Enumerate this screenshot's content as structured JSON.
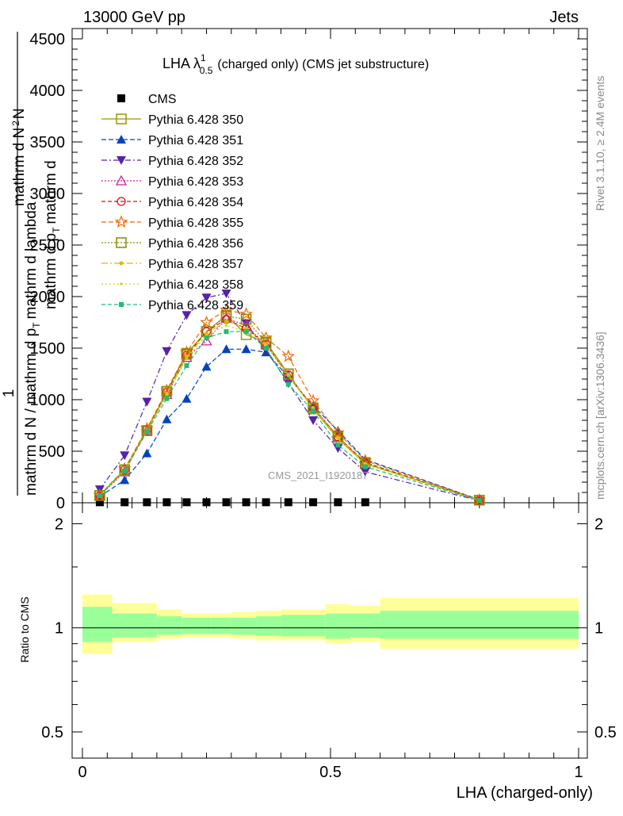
{
  "header": {
    "left": "13000 GeV pp",
    "right": "Jets"
  },
  "side": {
    "rivet": "Rivet 3.1.10, ≥ 2.4M events",
    "mcplots": "mcplots.cern.ch [arXiv:1306.3436]"
  },
  "plot_title": {
    "main": "LHA λ",
    "sup": "1",
    "sub": "0.5",
    "rest": "(charged only) (CMS jet substructure)"
  },
  "watermark": "CMS_2021_I1920187",
  "ylabel_main": {
    "one": "1",
    "den1": "mathrm d N / mathrm d p",
    "den1_sub": "T",
    "den2": "mathrm d N",
    "frac_num1": "mathrm d",
    "frac_num1_sup": "2",
    "frac_num2": "N",
    "frac_den": "mathrm d p",
    "frac_den_sub": "T",
    "frac_den2": "mathrm d lambda"
  },
  "ylabel_ratio": "Ratio to CMS",
  "xlabel": "LHA (charged-only)",
  "colors": {
    "cms": "#000000",
    "band_outer": "#ffff99",
    "band_inner": "#99ff99"
  },
  "chart_data": [
    {
      "type": "line",
      "panel": "main",
      "ylim": [
        0,
        4600
      ],
      "xlim": [
        0,
        1
      ],
      "y_ticks": [
        0,
        500,
        1000,
        1500,
        2000,
        2500,
        3000,
        3500,
        4000,
        4500
      ],
      "y_tick_labels": [
        "0",
        "500",
        "1000",
        "1500",
        "2000",
        "2500",
        "3000",
        "3500",
        "4000",
        "4500"
      ],
      "x": [
        0.035,
        0.085,
        0.13,
        0.17,
        0.21,
        0.25,
        0.29,
        0.33,
        0.37,
        0.415,
        0.465,
        0.515,
        0.57,
        0.8
      ],
      "series": [
        {
          "name": "CMS",
          "color": "#000000",
          "dash": "",
          "marker": "square-filled",
          "x": [
            0.035,
            0.085,
            0.13,
            0.17,
            0.21,
            0.25,
            0.29,
            0.33,
            0.37,
            0.415,
            0.465,
            0.515,
            0.57
          ],
          "values": [
            5,
            5,
            5,
            5,
            5,
            5,
            5,
            5,
            5,
            5,
            5,
            5,
            5
          ]
        },
        {
          "name": "Pythia 6.428 350",
          "color": "#999900",
          "dash": "",
          "marker": "square-open",
          "values": [
            70,
            320,
            700,
            1080,
            1450,
            1660,
            1820,
            1630,
            1560,
            1250,
            910,
            620,
            380,
            25
          ]
        },
        {
          "name": "Pythia 6.428 351",
          "color": "#0044bb",
          "dash": "6,3",
          "marker": "triangle-up-filled",
          "values": [
            60,
            220,
            480,
            810,
            1010,
            1320,
            1490,
            1490,
            1460,
            1220,
            940,
            700,
            420,
            30
          ]
        },
        {
          "name": "Pythia 6.428 352",
          "color": "#5522aa",
          "dash": "7,3,2,3",
          "marker": "triangle-down-filled",
          "values": [
            130,
            460,
            980,
            1470,
            1820,
            1990,
            2030,
            1740,
            1480,
            1160,
            800,
            530,
            300,
            20
          ]
        },
        {
          "name": "Pythia 6.428 353",
          "color": "#cc2299",
          "dash": "2,2",
          "marker": "triangle-up-open",
          "values": [
            65,
            300,
            700,
            1050,
            1410,
            1570,
            1790,
            1720,
            1530,
            1230,
            930,
            640,
            380,
            25
          ]
        },
        {
          "name": "Pythia 6.428 354",
          "color": "#dd1111",
          "dash": "5,3",
          "marker": "circle-open",
          "values": [
            70,
            320,
            710,
            1070,
            1430,
            1660,
            1780,
            1690,
            1540,
            1240,
            920,
            640,
            390,
            25
          ]
        },
        {
          "name": "Pythia 6.428 355",
          "color": "#ee6600",
          "dash": "6,3",
          "marker": "star-open",
          "values": [
            75,
            330,
            720,
            1090,
            1460,
            1750,
            1870,
            1830,
            1600,
            1420,
            990,
            680,
            410,
            28
          ]
        },
        {
          "name": "Pythia 6.428 356",
          "color": "#888800",
          "dash": "2,2",
          "marker": "square-open",
          "values": [
            70,
            320,
            700,
            1080,
            1440,
            1660,
            1810,
            1780,
            1550,
            1250,
            920,
            640,
            390,
            25
          ]
        },
        {
          "name": "Pythia 6.428 357",
          "color": "#ddbb00",
          "dash": "8,3,2,3",
          "marker": "dot",
          "values": [
            70,
            315,
            700,
            1060,
            1420,
            1640,
            1760,
            1690,
            1540,
            1240,
            920,
            630,
            380,
            25
          ]
        },
        {
          "name": "Pythia 6.428 358",
          "color": "#bbdd00",
          "dash": "2,3",
          "marker": "dot-small",
          "values": [
            70,
            310,
            690,
            1050,
            1400,
            1620,
            1720,
            1660,
            1530,
            1230,
            910,
            620,
            370,
            25
          ]
        },
        {
          "name": "Pythia 6.428 359",
          "color": "#22bb77",
          "dash": "5,3",
          "marker": "square-small-filled",
          "values": [
            70,
            310,
            690,
            1010,
            1330,
            1600,
            1660,
            1660,
            1500,
            1150,
            890,
            560,
            350,
            22
          ]
        }
      ]
    },
    {
      "type": "area",
      "panel": "ratio",
      "ylabel": "Ratio to CMS",
      "xlabel": "LHA (charged-only)",
      "xlim": [
        0,
        1
      ],
      "ylim": [
        0.42,
        2.3
      ],
      "log_y": true,
      "y_ticks": [
        0.5,
        1,
        2
      ],
      "y_tick_labels": [
        "0.5",
        "1",
        "2"
      ],
      "x_ticks": [
        0,
        0.5,
        1
      ],
      "x_tick_labels": [
        "0",
        "0.5",
        "1"
      ],
      "bins": [
        0,
        0.06,
        0.15,
        0.2,
        0.26,
        0.3,
        0.35,
        0.4,
        0.49,
        0.54,
        0.6,
        1.0
      ],
      "band_outer_low": [
        0.84,
        0.91,
        0.93,
        0.94,
        0.94,
        0.93,
        0.92,
        0.92,
        0.9,
        0.91,
        0.87
      ],
      "band_outer_high": [
        1.25,
        1.18,
        1.13,
        1.1,
        1.1,
        1.11,
        1.12,
        1.13,
        1.17,
        1.16,
        1.22
      ],
      "band_inner_low": [
        0.91,
        0.94,
        0.955,
        0.96,
        0.96,
        0.955,
        0.95,
        0.945,
        0.93,
        0.94,
        0.93
      ],
      "band_inner_high": [
        1.15,
        1.1,
        1.08,
        1.07,
        1.07,
        1.07,
        1.08,
        1.09,
        1.1,
        1.1,
        1.12
      ],
      "reference": 1
    }
  ]
}
